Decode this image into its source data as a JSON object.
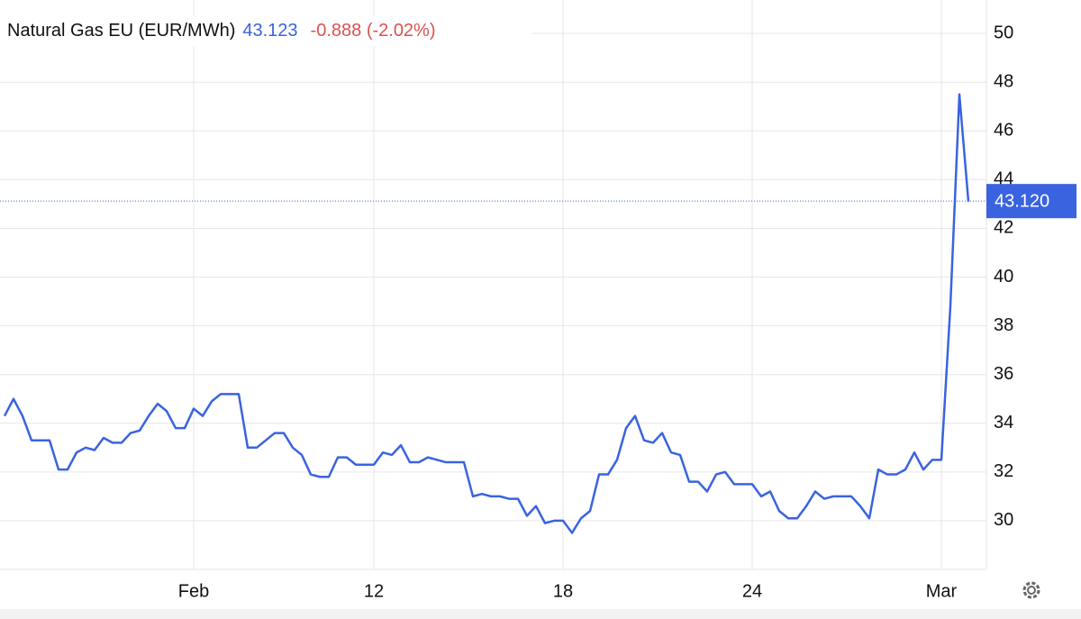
{
  "chart_data": {
    "type": "line",
    "title": "Natural Gas EU (EUR/MWh)",
    "last": "43.123",
    "change": "-0.888 (-2.02%)",
    "price_line": {
      "value": 43.12,
      "label": "43.120"
    },
    "categories": [
      null,
      null,
      null,
      null,
      null,
      null,
      null,
      null,
      null,
      null,
      null,
      null,
      null,
      null,
      null,
      null,
      null,
      null,
      null,
      null,
      null,
      "Feb",
      null,
      null,
      null,
      null,
      null,
      null,
      null,
      null,
      null,
      null,
      null,
      null,
      null,
      null,
      null,
      null,
      null,
      null,
      null,
      "12",
      null,
      null,
      null,
      null,
      null,
      null,
      null,
      null,
      null,
      null,
      null,
      null,
      null,
      null,
      null,
      null,
      null,
      null,
      null,
      null,
      "18",
      null,
      null,
      null,
      null,
      null,
      null,
      null,
      null,
      null,
      null,
      null,
      null,
      null,
      null,
      null,
      null,
      null,
      null,
      null,
      null,
      "24",
      null,
      null,
      null,
      null,
      null,
      null,
      null,
      null,
      null,
      null,
      null,
      null,
      null,
      null,
      null,
      null,
      null,
      null,
      null,
      null,
      "Mar",
      null,
      null,
      null
    ],
    "series": [
      {
        "name": "Natural Gas EU",
        "color": "#3a63e0",
        "values": [
          34.3,
          35.0,
          34.3,
          33.3,
          33.3,
          33.3,
          32.1,
          32.1,
          32.8,
          33.0,
          32.9,
          33.4,
          33.2,
          33.2,
          33.6,
          33.7,
          34.3,
          34.8,
          34.5,
          33.8,
          33.8,
          34.6,
          34.3,
          34.9,
          35.2,
          35.2,
          35.2,
          33.0,
          33.0,
          33.3,
          33.6,
          33.6,
          33.0,
          32.7,
          31.9,
          31.8,
          31.8,
          32.6,
          32.6,
          32.3,
          32.3,
          32.3,
          32.8,
          32.7,
          33.1,
          32.4,
          32.4,
          32.6,
          32.5,
          32.4,
          32.4,
          32.4,
          31.0,
          31.1,
          31.0,
          31.0,
          30.9,
          30.9,
          30.2,
          30.6,
          29.9,
          30.0,
          30.0,
          29.5,
          30.1,
          30.4,
          31.9,
          31.9,
          32.5,
          33.8,
          34.3,
          33.3,
          33.2,
          33.6,
          32.8,
          32.7,
          31.6,
          31.6,
          31.2,
          31.9,
          32.0,
          31.5,
          31.5,
          31.5,
          31.0,
          31.2,
          30.4,
          30.1,
          30.1,
          30.6,
          31.2,
          30.9,
          31.0,
          31.0,
          31.0,
          30.6,
          30.1,
          32.1,
          31.9,
          31.9,
          32.1,
          32.8,
          32.1,
          32.5,
          32.5,
          38.8,
          47.5,
          43.1
        ]
      }
    ],
    "ylim": [
      28,
      51.3
    ],
    "yticks": [
      30,
      32,
      34,
      36,
      38,
      40,
      42,
      44,
      46,
      48,
      50
    ],
    "grid": true
  }
}
